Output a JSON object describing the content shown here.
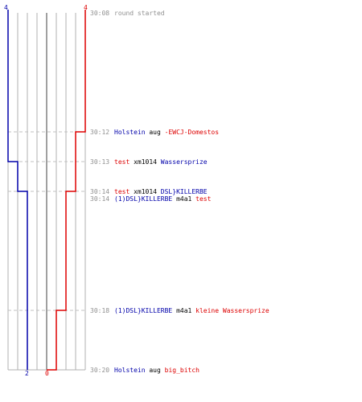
{
  "colors": {
    "blue": "#0000aa",
    "red": "#dd0000",
    "grid": "#b0b0b0",
    "axis": "#808080",
    "text": "#000000",
    "time": "#909090",
    "dash": "#c0c0c0"
  },
  "score_axis": {
    "blue_start": "4",
    "red_start": "4",
    "blue_end": "2",
    "red_end": "0"
  },
  "events": [
    {
      "time": "30:08",
      "parts": [
        {
          "text": "round started",
          "team": "neutral"
        }
      ]
    },
    {
      "time": "30:12",
      "parts": [
        {
          "text": "Holstein",
          "team": "blue"
        },
        {
          "text": " aug ",
          "team": "neutral"
        },
        {
          "text": "-EWCJ-Domestos",
          "team": "red"
        }
      ]
    },
    {
      "time": "30:13",
      "parts": [
        {
          "text": "test",
          "team": "red"
        },
        {
          "text": " xm1014 ",
          "team": "neutral"
        },
        {
          "text": "Wassersprize",
          "team": "blue"
        }
      ]
    },
    {
      "time": "30:14",
      "parts": [
        {
          "text": "test",
          "team": "red"
        },
        {
          "text": " xm1014 ",
          "team": "neutral"
        },
        {
          "text": "DSL}KILLERBE",
          "team": "blue"
        }
      ]
    },
    {
      "time": "30:14",
      "parts": [
        {
          "text": "(1)DSL}KILLERBE",
          "team": "blue"
        },
        {
          "text": " m4a1 ",
          "team": "neutral"
        },
        {
          "text": "test",
          "team": "red"
        }
      ]
    },
    {
      "time": "30:18",
      "parts": [
        {
          "text": "(1)DSL}KILLERBE",
          "team": "blue"
        },
        {
          "text": " m4a1 ",
          "team": "neutral"
        },
        {
          "text": "kleine Wassersprize",
          "team": "red"
        }
      ]
    },
    {
      "time": "30:20",
      "parts": [
        {
          "text": "Holstein",
          "team": "blue"
        },
        {
          "text": " aug ",
          "team": "neutral"
        },
        {
          "text": "big_bitch",
          "team": "red"
        }
      ]
    }
  ]
}
